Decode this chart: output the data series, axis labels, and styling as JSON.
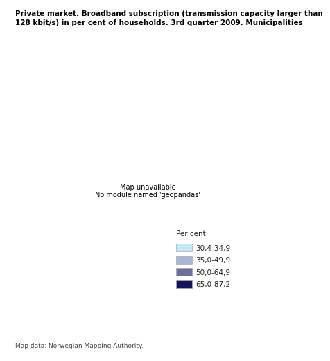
{
  "title_line1": "Private market. Broadband subscription (transmission capacity larger than",
  "title_line2": "128 kbit/s) in per cent of households. 3rd quarter 2009. Municipalities",
  "title_fontsize": 7.5,
  "footer": "Map data: Norwegian Mapping Authority.",
  "footer_fontsize": 6.5,
  "legend_title": "Per cent",
  "legend_title_fontsize": 7.5,
  "legend_labels": [
    "30,4-34,9",
    "35,0-49,9",
    "50,0-64,9",
    "65,0-87,2"
  ],
  "legend_colors": [
    "#c5e8f5",
    "#a8b8d4",
    "#6b6f9e",
    "#14145a"
  ],
  "legend_edge_color": "#aaaaaa",
  "legend_fontsize": 7.5,
  "background_color": "#ffffff",
  "map_edge_color": "#cccccc",
  "map_edge_width": 0.3,
  "fig_width": 4.1,
  "fig_height": 5.01,
  "title_divider_color": "#aaaaaa"
}
